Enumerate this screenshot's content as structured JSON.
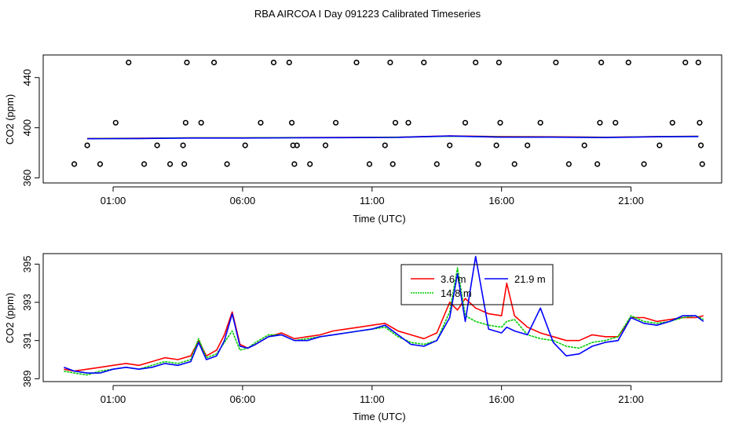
{
  "title": "RBA AIRCOA I  Day 091223  Calibrated Timeseries",
  "chart_data": [
    {
      "type": "line",
      "xlabel": "Time (UTC)",
      "ylabel": "CO2 (ppm)",
      "x_ticks": [
        1,
        6,
        11,
        16,
        21
      ],
      "x_tick_labels": [
        "01:00",
        "06:00",
        "11:00",
        "16:00",
        "21:00"
      ],
      "xlim": [
        -1.7,
        24.5
      ],
      "y_ticks": [
        360,
        400,
        440
      ],
      "ylim": [
        356,
        458
      ],
      "grid": false,
      "series": [
        {
          "color": "#ff0000",
          "x": [
            0,
            2,
            4,
            6,
            8,
            10,
            12,
            14,
            16,
            18,
            20,
            22,
            23.6
          ],
          "values": [
            391.5,
            391.6,
            392,
            392,
            392.2,
            392.3,
            392.5,
            393.5,
            393,
            392.8,
            392.4,
            393,
            393.2
          ]
        },
        {
          "color": "#00cc00",
          "x": [
            0,
            2,
            4,
            6,
            8,
            10,
            12,
            14,
            16,
            18,
            20,
            22,
            23.6
          ],
          "values": [
            391.3,
            391.5,
            391.9,
            391.9,
            392.1,
            392.2,
            392.4,
            393.3,
            392.7,
            392.6,
            392.3,
            392.9,
            393.1
          ]
        },
        {
          "color": "#0000ff",
          "x": [
            0,
            2,
            4,
            6,
            8,
            10,
            12,
            14,
            16,
            18,
            20,
            22,
            23.6
          ],
          "values": [
            391.2,
            391.4,
            391.8,
            391.8,
            392,
            392.1,
            392.3,
            393.4,
            392.5,
            392.5,
            392.2,
            392.8,
            393
          ]
        }
      ],
      "points": {
        "color": "#000000",
        "x": [
          -0.5,
          0,
          0.5,
          1.1,
          1.6,
          2.2,
          2.7,
          3.2,
          3.7,
          3.75,
          3.8,
          3.85,
          4.4,
          4.9,
          5.4,
          6.1,
          6.7,
          7.2,
          7.8,
          7.9,
          7.95,
          8,
          8.1,
          8.6,
          9.2,
          9.6,
          10.4,
          10.9,
          11.5,
          11.7,
          11.8,
          11.9,
          12.4,
          13.0,
          13.5,
          14.0,
          14.6,
          15.0,
          15.1,
          15.8,
          15.9,
          15.95,
          16.5,
          17.0,
          17.5,
          18.1,
          18.6,
          19.2,
          19.7,
          19.8,
          19.85,
          20.4,
          20.9,
          21.5,
          22.1,
          22.6,
          23.1,
          23.6,
          23.65,
          23.7,
          23.75
        ],
        "values": [
          371,
          386,
          371,
          404,
          452,
          371,
          386,
          371,
          386,
          371,
          404,
          452,
          404,
          452,
          371,
          386,
          404,
          452,
          452,
          404,
          386,
          371,
          386,
          371,
          386,
          404,
          452,
          371,
          386,
          452,
          371,
          404,
          404,
          452,
          371,
          386,
          404,
          452,
          371,
          386,
          452,
          404,
          371,
          386,
          404,
          452,
          371,
          386,
          371,
          404,
          452,
          404,
          452,
          371,
          386,
          404,
          452,
          452,
          404,
          386,
          371
        ]
      }
    },
    {
      "type": "line",
      "xlabel": "Time (UTC)",
      "ylabel": "CO2 (ppm)",
      "x_ticks": [
        1,
        6,
        11,
        16,
        21
      ],
      "x_tick_labels": [
        "01:00",
        "06:00",
        "11:00",
        "16:00",
        "21:00"
      ],
      "xlim": [
        -1.7,
        24.5
      ],
      "y_ticks": [
        389,
        391,
        393,
        395
      ],
      "ylim": [
        388.85,
        395.55
      ],
      "grid": false,
      "legend": {
        "placement": "top-center",
        "visible_labels": [
          "3.6 m",
          "14.8 m",
          "21.9 m"
        ]
      },
      "series": [
        {
          "name": "3.6 m",
          "color": "#ff0000",
          "x": [
            -0.9,
            -0.5,
            0,
            0.5,
            1.0,
            1.5,
            2.0,
            2.5,
            3.0,
            3.5,
            4.0,
            4.3,
            4.6,
            5.0,
            5.3,
            5.6,
            5.9,
            6.2,
            6.5,
            7.0,
            7.5,
            8.0,
            8.5,
            9.0,
            9.5,
            10.0,
            10.5,
            11.0,
            11.5,
            12.0,
            12.5,
            13.0,
            13.5,
            14.0,
            14.3,
            14.6,
            15.0,
            15.5,
            16.0,
            16.2,
            16.5,
            17.0,
            17.5,
            18.0,
            18.5,
            19.0,
            19.5,
            20.0,
            20.5,
            21.0,
            21.5,
            22.0,
            22.5,
            23.0,
            23.5,
            23.8
          ],
          "values": [
            389.5,
            389.4,
            389.5,
            389.6,
            389.7,
            389.8,
            389.7,
            389.9,
            390.1,
            390.0,
            390.2,
            391.0,
            390.2,
            390.5,
            391.3,
            392.5,
            390.8,
            390.6,
            390.8,
            391.2,
            391.4,
            391.1,
            391.2,
            391.3,
            391.5,
            391.6,
            391.7,
            391.8,
            391.9,
            391.5,
            391.3,
            391.1,
            391.4,
            393.0,
            392.6,
            393.2,
            392.7,
            392.4,
            392.3,
            394.0,
            392.3,
            391.7,
            391.4,
            391.2,
            391.0,
            391.0,
            391.3,
            391.2,
            391.2,
            392.2,
            392.2,
            392.0,
            392.1,
            392.2,
            392.2,
            392.3
          ]
        },
        {
          "name": "14.8 m",
          "color": "#00cc00",
          "x": [
            -0.9,
            -0.5,
            0,
            0.5,
            1.0,
            1.5,
            2.0,
            2.5,
            3.0,
            3.5,
            4.0,
            4.3,
            4.6,
            5.0,
            5.3,
            5.6,
            5.9,
            6.2,
            6.5,
            7.0,
            7.5,
            8.0,
            8.5,
            9.0,
            9.5,
            10.0,
            10.5,
            11.0,
            11.5,
            12.0,
            12.5,
            13.0,
            13.5,
            14.0,
            14.3,
            14.6,
            15.0,
            15.5,
            16.0,
            16.2,
            16.5,
            17.0,
            17.5,
            18.0,
            18.5,
            19.0,
            19.5,
            20.0,
            20.5,
            21.0,
            21.5,
            22.0,
            22.5,
            23.0,
            23.5,
            23.8
          ],
          "values": [
            389.4,
            389.3,
            389.2,
            389.4,
            389.5,
            389.6,
            389.5,
            389.7,
            389.9,
            389.8,
            390.0,
            391.1,
            390.1,
            390.3,
            390.9,
            391.5,
            390.5,
            390.6,
            390.9,
            391.3,
            391.3,
            391.0,
            391.1,
            391.2,
            391.3,
            391.4,
            391.5,
            391.6,
            391.7,
            391.2,
            390.9,
            390.8,
            391.0,
            392.5,
            394.8,
            392.3,
            392.0,
            391.8,
            391.7,
            392.0,
            392.1,
            391.3,
            391.1,
            391.0,
            390.7,
            390.6,
            390.9,
            391.0,
            391.2,
            392.3,
            392.0,
            391.9,
            392.0,
            392.2,
            392.3,
            392.1
          ]
        },
        {
          "name": "21.9 m",
          "color": "#0000ff",
          "x": [
            -0.9,
            -0.5,
            0,
            0.5,
            1.0,
            1.5,
            2.0,
            2.5,
            3.0,
            3.5,
            4.0,
            4.3,
            4.6,
            5.0,
            5.3,
            5.6,
            5.9,
            6.2,
            6.5,
            7.0,
            7.5,
            8.0,
            8.5,
            9.0,
            9.5,
            10.0,
            10.5,
            11.0,
            11.5,
            12.0,
            12.5,
            13.0,
            13.5,
            14.0,
            14.3,
            14.6,
            15.0,
            15.5,
            16.0,
            16.2,
            16.5,
            17.0,
            17.5,
            18.0,
            18.5,
            19.0,
            19.5,
            20.0,
            20.5,
            21.0,
            21.5,
            22.0,
            22.5,
            23.0,
            23.5,
            23.8
          ],
          "values": [
            389.6,
            389.4,
            389.3,
            389.3,
            389.5,
            389.6,
            389.5,
            389.6,
            389.8,
            389.7,
            389.9,
            390.9,
            390.0,
            390.2,
            391.0,
            392.4,
            390.7,
            390.6,
            390.8,
            391.2,
            391.3,
            391.0,
            391.0,
            391.2,
            391.3,
            391.4,
            391.5,
            391.6,
            391.8,
            391.3,
            390.8,
            390.7,
            391.0,
            392.2,
            394.5,
            392.0,
            395.4,
            391.6,
            391.4,
            391.7,
            391.5,
            391.3,
            392.7,
            390.9,
            390.2,
            390.3,
            390.7,
            390.9,
            391.0,
            392.2,
            391.9,
            391.8,
            392.0,
            392.3,
            392.3,
            392.0
          ]
        }
      ]
    }
  ]
}
